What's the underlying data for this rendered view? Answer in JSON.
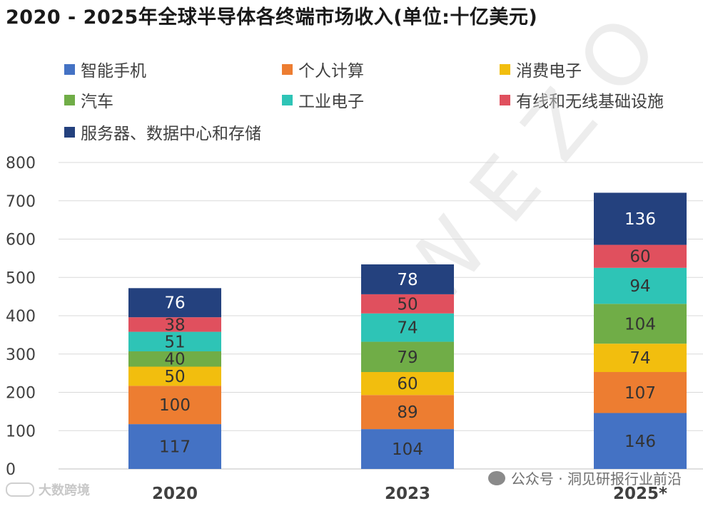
{
  "chart_data": {
    "type": "bar",
    "stacked": true,
    "title": "2020 - 2025年全球半导体各终端市场收入(单位:十亿美元)",
    "categories": [
      "2020",
      "2023",
      "2025*"
    ],
    "ylim": [
      0,
      800
    ],
    "yticks": [
      0,
      100,
      200,
      300,
      400,
      500,
      600,
      700,
      800
    ],
    "grid": true,
    "legend_position": "top",
    "series": [
      {
        "name": "智能手机",
        "color": "#4472C4",
        "values": [
          117,
          104,
          146
        ]
      },
      {
        "name": "个人计算",
        "color": "#ED7D31",
        "values": [
          100,
          89,
          107
        ]
      },
      {
        "name": "消费电子",
        "color": "#F2BE0E",
        "values": [
          50,
          60,
          74
        ]
      },
      {
        "name": "汽车",
        "color": "#70AD47",
        "values": [
          40,
          79,
          104
        ]
      },
      {
        "name": "工业电子",
        "color": "#2EC4B6",
        "values": [
          51,
          74,
          94
        ]
      },
      {
        "name": "有线和无线基础设施",
        "color": "#E0505E",
        "values": [
          38,
          50,
          60
        ]
      },
      {
        "name": "服务器、数据中心和存储",
        "color": "#24417E",
        "values": [
          76,
          78,
          136
        ]
      }
    ]
  },
  "watermark": {
    "text": "WEZO"
  },
  "footer": {
    "wechat_text": "公众号 · 洞见研报行业前沿",
    "brand_text": "大数跨境"
  }
}
